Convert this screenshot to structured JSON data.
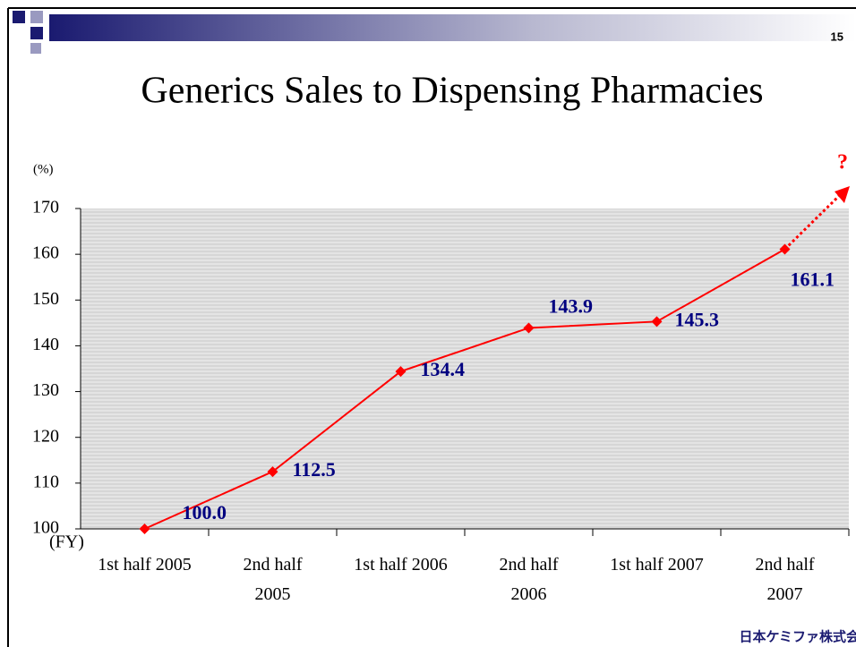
{
  "page_number": "15",
  "chart_data": {
    "type": "line",
    "title": "Generics Sales to Dispensing Pharmacies",
    "y_label": "(%)",
    "x_label": "(FY)",
    "categories": [
      "1st half 2005",
      "2nd half 2005",
      "1st half 2006",
      "2nd half 2006",
      "1st half 2007",
      "2nd half 2007"
    ],
    "series": [
      {
        "name": "Generics sales",
        "color": "#ff0000",
        "values": [
          100,
          112.5,
          134.4,
          143.9,
          145.3,
          161.1
        ],
        "value_labels": [
          "100.0",
          "112.5",
          "134.4",
          "143.9",
          "145.3",
          "161.1"
        ]
      }
    ],
    "ylim": [
      100,
      170
    ],
    "yticks": [
      100,
      110,
      120,
      130,
      140,
      150,
      160,
      170
    ],
    "annotation": "?",
    "grid": true
  },
  "footer": {
    "logo_text": "日本ケミファ株式会社"
  }
}
